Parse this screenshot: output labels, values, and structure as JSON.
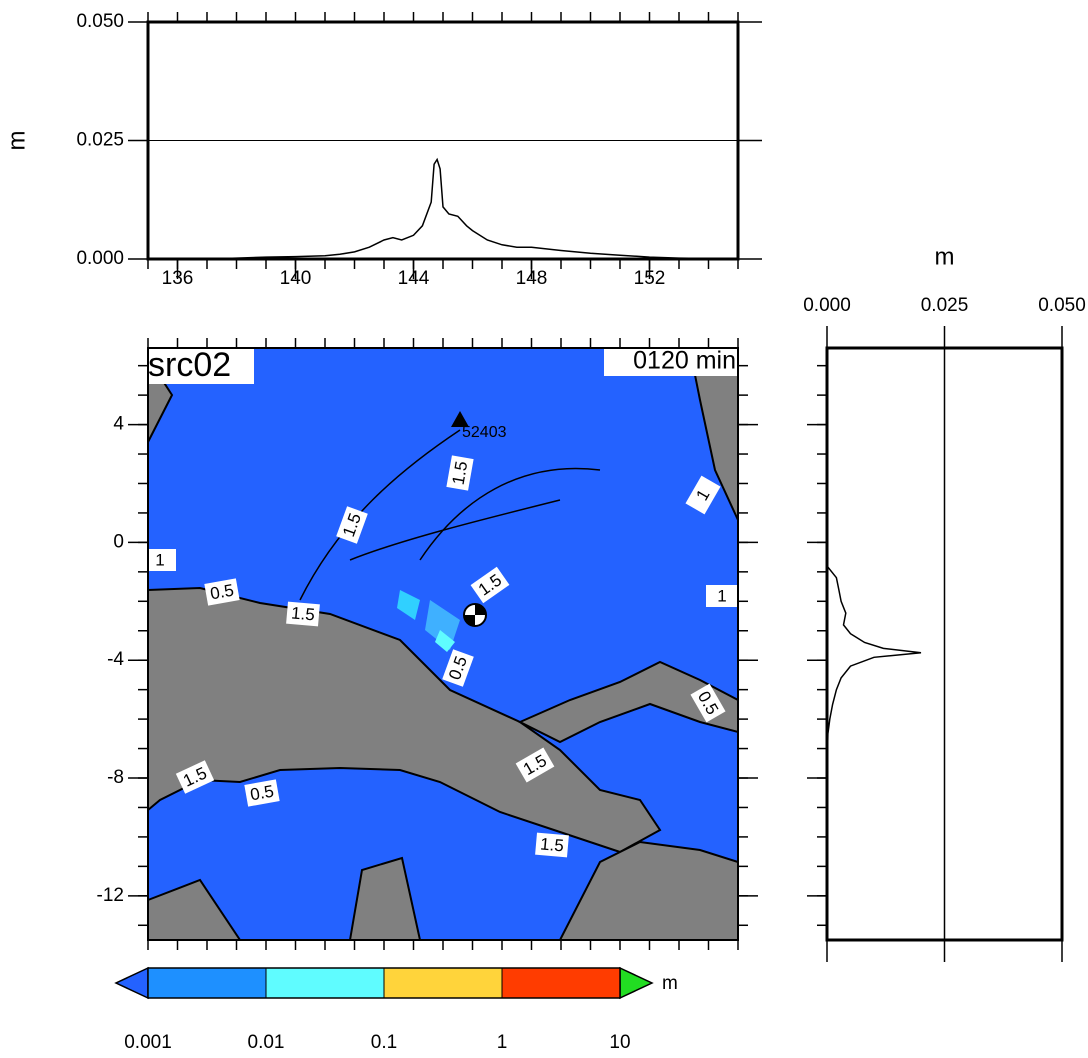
{
  "chart_data": [
    {
      "type": "line",
      "ylabel": "m",
      "xlim": [
        135,
        155
      ],
      "xticks": [
        136,
        140,
        144,
        148,
        152
      ],
      "minor_tick_step": 1,
      "ylim": [
        0,
        0.05
      ],
      "yticks": [
        {
          "value": 0,
          "label": "0.000"
        },
        {
          "value": 0.025,
          "label": "0.025"
        },
        {
          "value": 0.05,
          "label": "0.050"
        }
      ],
      "grid": true,
      "x": [
        135,
        136,
        137,
        138,
        139,
        140,
        141,
        141.5,
        142,
        142.5,
        143,
        143.3,
        143.6,
        144,
        144.3,
        144.6,
        144.7,
        144.8,
        144.9,
        145,
        145.2,
        145.5,
        145.8,
        146,
        146.5,
        147,
        147.5,
        148,
        149,
        150,
        151,
        152,
        153,
        154,
        155
      ],
      "series": [
        {
          "color": "#000000",
          "values": [
            0,
            0,
            0,
            0.0002,
            0.0004,
            0.0005,
            0.0007,
            0.001,
            0.0015,
            0.0025,
            0.004,
            0.0045,
            0.004,
            0.005,
            0.007,
            0.012,
            0.02,
            0.021,
            0.019,
            0.011,
            0.0095,
            0.009,
            0.007,
            0.006,
            0.004,
            0.003,
            0.0025,
            0.0025,
            0.0018,
            0.0012,
            0.0008,
            0.0004,
            0.0002,
            0.0001,
            0
          ]
        }
      ]
    },
    {
      "type": "profile",
      "xlabel": "m",
      "xlim": [
        0,
        0.05
      ],
      "xticks": [
        {
          "value": 0,
          "label": "0.000"
        },
        {
          "value": 0.025,
          "label": "0.025"
        },
        {
          "value": 0.05,
          "label": "0.050"
        }
      ],
      "ylim": [
        -13.5,
        6.6
      ],
      "minor_tick_step": 1,
      "grid": true,
      "y": [
        6.6,
        2,
        0,
        -0.8,
        -1.2,
        -1.6,
        -2,
        -2.4,
        -2.8,
        -3.1,
        -3.4,
        -3.6,
        -3.75,
        -3.9,
        -4.2,
        -4.6,
        -5,
        -5.5,
        -6,
        -6.5,
        -8,
        -13.5
      ],
      "series": [
        {
          "color": "#000000",
          "values": [
            0,
            0,
            0,
            0,
            0.002,
            0.0025,
            0.003,
            0.004,
            0.0035,
            0.005,
            0.008,
            0.012,
            0.02,
            0.01,
            0.005,
            0.003,
            0.002,
            0.0012,
            0.0006,
            0.0002,
            0,
            0
          ]
        }
      ]
    },
    {
      "type": "map",
      "title": "src02",
      "annotation": "0120 min",
      "station": "52403",
      "xlim": [
        135,
        155
      ],
      "ylim": [
        -13.5,
        6.6
      ],
      "yticks": [
        4,
        0,
        -4,
        -8,
        -12
      ],
      "minor_tick_step": 1,
      "ocean_color": "#2462ff",
      "land_color": "#808080",
      "contour_labels": [
        "1.5",
        "1.5",
        "1",
        "0.5",
        "1.5",
        "1.5",
        "0.5",
        "1.5",
        "0.5",
        "1.5",
        "1.5",
        "0.5",
        "1",
        "1"
      ],
      "colorbar": {
        "label": "m",
        "ticks": [
          0.001,
          0.01,
          0.1,
          1,
          10
        ],
        "colors": [
          "#1e90ff",
          "#5ffcff",
          "#ffd43b",
          "#ff3c00"
        ],
        "under_color": "#2462ff",
        "over_color": "#22dd22"
      }
    }
  ]
}
